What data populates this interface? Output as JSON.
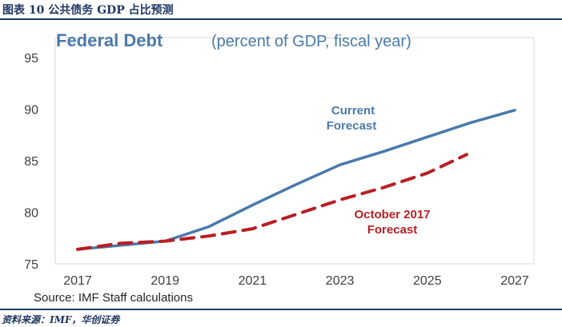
{
  "figure": {
    "label": "图表 10  公共债务 GDP 占比预测",
    "footer": "资料来源：IMF，华创证券"
  },
  "colors": {
    "current": "#4a7aab",
    "october": "#b81e22",
    "title_blue": "#4a7aab",
    "axis_text": "#404040",
    "header_navy": "#1f3864"
  },
  "chart_data": {
    "type": "line",
    "title": "Federal Debt",
    "subtitle": "(percent of GDP, fiscal year)",
    "xlabel": "",
    "ylabel": "",
    "xlim": [
      2017,
      2027
    ],
    "ylim": [
      75,
      95
    ],
    "x_ticks": [
      "2017",
      "2019",
      "2021",
      "2023",
      "2025",
      "2027"
    ],
    "y_ticks": [
      "75",
      "80",
      "85",
      "90",
      "95"
    ],
    "grid": false,
    "source": "Source: IMF Staff calculations",
    "series": [
      {
        "name": "Current Forecast",
        "label_lines": [
          "Current",
          "Forecast"
        ],
        "style": "solid",
        "x": [
          2017,
          2018,
          2019,
          2020,
          2021,
          2022,
          2023,
          2024,
          2025,
          2026,
          2027
        ],
        "values": [
          76.4,
          76.8,
          77.2,
          78.6,
          80.7,
          82.7,
          84.6,
          85.9,
          87.3,
          88.7,
          89.9
        ]
      },
      {
        "name": "October 2017 Forecast",
        "label_lines": [
          "October 2017",
          "Forecast"
        ],
        "style": "dashed",
        "x": [
          2017,
          2018,
          2019,
          2020,
          2021,
          2022,
          2023,
          2024,
          2025,
          2025.9
        ],
        "values": [
          76.4,
          77.0,
          77.2,
          77.7,
          78.4,
          79.8,
          81.2,
          82.4,
          83.8,
          85.6
        ]
      }
    ]
  }
}
